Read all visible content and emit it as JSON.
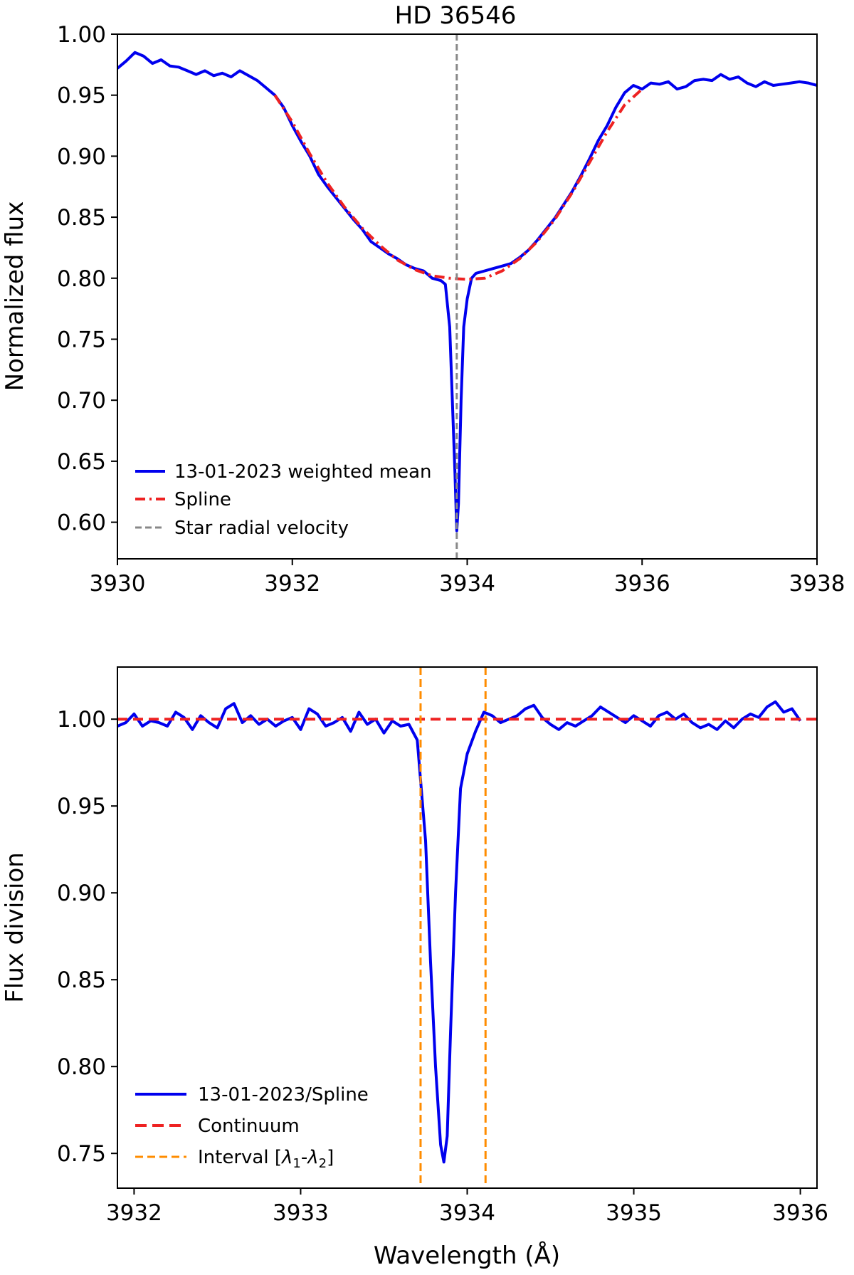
{
  "chart_data": [
    {
      "type": "line",
      "title": "HD 36546",
      "xlabel": "",
      "ylabel": "Normalized flux",
      "xlim": [
        3930,
        3938
      ],
      "ylim": [
        0.57,
        1.0
      ],
      "xticks": [
        3930,
        3932,
        3934,
        3936,
        3938
      ],
      "yticks": [
        0.6,
        0.65,
        0.7,
        0.75,
        0.8,
        0.85,
        0.9,
        0.95,
        1.0
      ],
      "xtick_labels": [
        "3930",
        "3932",
        "3934",
        "3936",
        "3938"
      ],
      "ytick_labels": [
        "0.60",
        "0.65",
        "0.70",
        "0.75",
        "0.80",
        "0.85",
        "0.90",
        "0.95",
        "1.00"
      ],
      "legend_position": "lower-left",
      "grid": false,
      "series": [
        {
          "name": "13-01-2023 weighted mean",
          "color": "#0000ee",
          "style": "solid",
          "x": [
            3930.0,
            3930.1,
            3930.2,
            3930.3,
            3930.4,
            3930.5,
            3930.6,
            3930.7,
            3930.8,
            3930.9,
            3931.0,
            3931.1,
            3931.2,
            3931.3,
            3931.4,
            3931.5,
            3931.6,
            3931.7,
            3931.8,
            3931.9,
            3932.0,
            3932.1,
            3932.2,
            3932.3,
            3932.4,
            3932.5,
            3932.6,
            3932.7,
            3932.8,
            3932.9,
            3933.0,
            3933.1,
            3933.2,
            3933.3,
            3933.4,
            3933.5,
            3933.6,
            3933.7,
            3933.75,
            3933.8,
            3933.83,
            3933.86,
            3933.88,
            3933.9,
            3933.93,
            3933.96,
            3934.0,
            3934.05,
            3934.1,
            3934.2,
            3934.3,
            3934.4,
            3934.5,
            3934.6,
            3934.7,
            3934.8,
            3934.9,
            3935.0,
            3935.1,
            3935.2,
            3935.3,
            3935.4,
            3935.5,
            3935.6,
            3935.7,
            3935.8,
            3935.9,
            3936.0,
            3936.1,
            3936.2,
            3936.3,
            3936.4,
            3936.5,
            3936.6,
            3936.7,
            3936.8,
            3936.9,
            3937.0,
            3937.1,
            3937.2,
            3937.3,
            3937.4,
            3937.5,
            3937.6,
            3937.7,
            3937.8,
            3937.9,
            3938.0
          ],
          "y": [
            0.972,
            0.978,
            0.985,
            0.982,
            0.976,
            0.979,
            0.974,
            0.973,
            0.97,
            0.967,
            0.97,
            0.966,
            0.968,
            0.965,
            0.97,
            0.966,
            0.962,
            0.956,
            0.95,
            0.94,
            0.925,
            0.912,
            0.9,
            0.885,
            0.875,
            0.866,
            0.857,
            0.848,
            0.84,
            0.83,
            0.825,
            0.82,
            0.816,
            0.811,
            0.808,
            0.806,
            0.8,
            0.798,
            0.795,
            0.76,
            0.7,
            0.64,
            0.593,
            0.615,
            0.7,
            0.76,
            0.783,
            0.8,
            0.804,
            0.806,
            0.808,
            0.81,
            0.812,
            0.817,
            0.823,
            0.831,
            0.84,
            0.849,
            0.86,
            0.871,
            0.884,
            0.898,
            0.913,
            0.925,
            0.94,
            0.952,
            0.958,
            0.955,
            0.96,
            0.959,
            0.961,
            0.955,
            0.957,
            0.962,
            0.963,
            0.962,
            0.967,
            0.963,
            0.965,
            0.96,
            0.957,
            0.961,
            0.958,
            0.959,
            0.96,
            0.961,
            0.96,
            0.958
          ]
        },
        {
          "name": "Spline",
          "color": "#ee2222",
          "style": "dashdot",
          "x": [
            3931.8,
            3932.0,
            3932.2,
            3932.4,
            3932.6,
            3932.8,
            3933.0,
            3933.2,
            3933.4,
            3933.6,
            3933.8,
            3934.0,
            3934.2,
            3934.4,
            3934.6,
            3934.8,
            3935.0,
            3935.2,
            3935.4,
            3935.6,
            3935.8,
            3936.0
          ],
          "y": [
            0.95,
            0.928,
            0.902,
            0.878,
            0.858,
            0.841,
            0.827,
            0.815,
            0.807,
            0.802,
            0.8,
            0.799,
            0.8,
            0.806,
            0.816,
            0.83,
            0.848,
            0.87,
            0.895,
            0.92,
            0.942,
            0.955
          ]
        },
        {
          "name": "Star radial velocity",
          "color": "#888888",
          "style": "dashed",
          "x": [
            3933.88,
            3933.88
          ],
          "y": [
            0.57,
            1.0
          ]
        }
      ]
    },
    {
      "type": "line",
      "title": "",
      "xlabel": "Wavelength (Å)",
      "ylabel": "Flux division",
      "xlim": [
        3931.9,
        3936.1
      ],
      "ylim": [
        0.73,
        1.03
      ],
      "xticks": [
        3932,
        3933,
        3934,
        3935,
        3936
      ],
      "yticks": [
        0.75,
        0.8,
        0.85,
        0.9,
        0.95,
        1.0
      ],
      "xtick_labels": [
        "3932",
        "3933",
        "3934",
        "3935",
        "3936"
      ],
      "ytick_labels": [
        "0.75",
        "0.80",
        "0.85",
        "0.90",
        "0.95",
        "1.00"
      ],
      "legend_position": "lower-left",
      "grid": false,
      "series": [
        {
          "name": "13-01-2023/Spline",
          "color": "#0000ee",
          "style": "solid",
          "x": [
            3931.9,
            3931.95,
            3932.0,
            3932.05,
            3932.1,
            3932.15,
            3932.2,
            3932.25,
            3932.3,
            3932.35,
            3932.4,
            3932.45,
            3932.5,
            3932.55,
            3932.6,
            3932.65,
            3932.7,
            3932.75,
            3932.8,
            3932.85,
            3932.9,
            3932.95,
            3933.0,
            3933.05,
            3933.1,
            3933.15,
            3933.2,
            3933.25,
            3933.3,
            3933.35,
            3933.4,
            3933.45,
            3933.5,
            3933.55,
            3933.6,
            3933.65,
            3933.7,
            3933.75,
            3933.78,
            3933.81,
            3933.84,
            3933.86,
            3933.88,
            3933.9,
            3933.93,
            3933.96,
            3934.0,
            3934.05,
            3934.1,
            3934.15,
            3934.2,
            3934.25,
            3934.3,
            3934.35,
            3934.4,
            3934.45,
            3934.5,
            3934.55,
            3934.6,
            3934.65,
            3934.7,
            3934.75,
            3934.8,
            3934.85,
            3934.9,
            3934.95,
            3935.0,
            3935.05,
            3935.1,
            3935.15,
            3935.2,
            3935.25,
            3935.3,
            3935.35,
            3935.4,
            3935.45,
            3935.5,
            3935.55,
            3935.6,
            3935.65,
            3935.7,
            3935.75,
            3935.8,
            3935.85,
            3935.9,
            3935.95,
            3936.0
          ],
          "y": [
            0.996,
            0.998,
            1.003,
            0.996,
            0.999,
            0.998,
            0.996,
            1.004,
            1.001,
            0.994,
            1.002,
            0.998,
            0.995,
            1.006,
            1.009,
            0.998,
            1.002,
            0.997,
            1.0,
            0.996,
            0.999,
            1.001,
            0.994,
            1.006,
            1.003,
            0.996,
            0.998,
            1.001,
            0.993,
            1.004,
            0.997,
            1.0,
            0.992,
            0.999,
            0.996,
            0.997,
            0.988,
            0.93,
            0.86,
            0.8,
            0.755,
            0.745,
            0.76,
            0.82,
            0.9,
            0.96,
            0.98,
            0.993,
            1.004,
            1.002,
            0.998,
            1.0,
            1.002,
            1.006,
            1.008,
            1.001,
            0.997,
            0.994,
            0.998,
            0.996,
            0.999,
            1.002,
            1.007,
            1.004,
            1.001,
            0.998,
            1.002,
            0.999,
            0.996,
            1.002,
            1.004,
            1.0,
            1.003,
            0.998,
            0.995,
            0.997,
            0.994,
            0.999,
            0.995,
            1.0,
            1.003,
            1.001,
            1.007,
            1.01,
            1.004,
            1.006,
            0.999
          ]
        },
        {
          "name": "Continuum",
          "color": "#ee2222",
          "style": "dashed",
          "x": [
            3931.9,
            3936.1
          ],
          "y": [
            1.0,
            1.0
          ]
        },
        {
          "name": "Interval [λ1-λ2]",
          "name_parts": {
            "prefix": "Interval [",
            "v1": "λ",
            "s1": "1",
            "dash": "-",
            "v2": "λ",
            "s2": "2",
            "suffix": "]"
          },
          "color": "#ff8c00",
          "style": "dashed",
          "vlines": [
            3933.72,
            3934.11
          ]
        }
      ]
    }
  ]
}
